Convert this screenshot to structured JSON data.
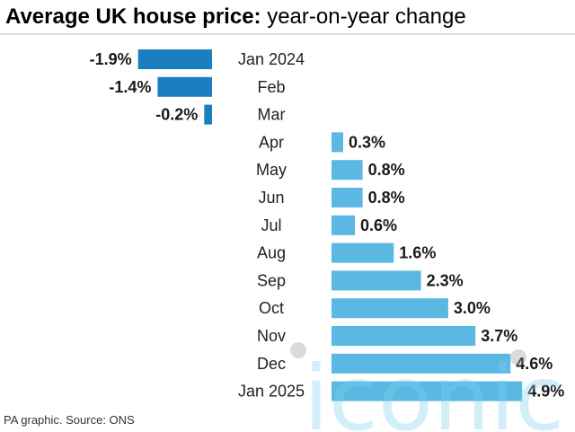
{
  "chart_data": {
    "type": "bar",
    "orientation": "horizontal",
    "title_bold": "Average UK house price:",
    "title_rest": " year-on-year change",
    "categories": [
      "Jan 2024",
      "Feb",
      "Mar",
      "Apr",
      "May",
      "Jun",
      "Jul",
      "Aug",
      "Sep",
      "Oct",
      "Nov",
      "Dec",
      "Jan 2025"
    ],
    "values": [
      -1.9,
      -1.4,
      -0.2,
      0.3,
      0.8,
      0.8,
      0.6,
      1.6,
      2.3,
      3.0,
      3.7,
      4.6,
      4.9
    ],
    "value_labels": [
      "-1.9%",
      "-1.4%",
      "-0.2%",
      "0.3%",
      "0.8%",
      "0.8%",
      "0.6%",
      "1.6%",
      "2.3%",
      "3.0%",
      "3.7%",
      "4.6%",
      "4.9%"
    ],
    "colors": {
      "negative": "#1a7fc1",
      "positive": "#5bb8e3"
    },
    "grid": false
  },
  "source_note": "PA graphic. Source: ONS",
  "watermark": "iconic"
}
